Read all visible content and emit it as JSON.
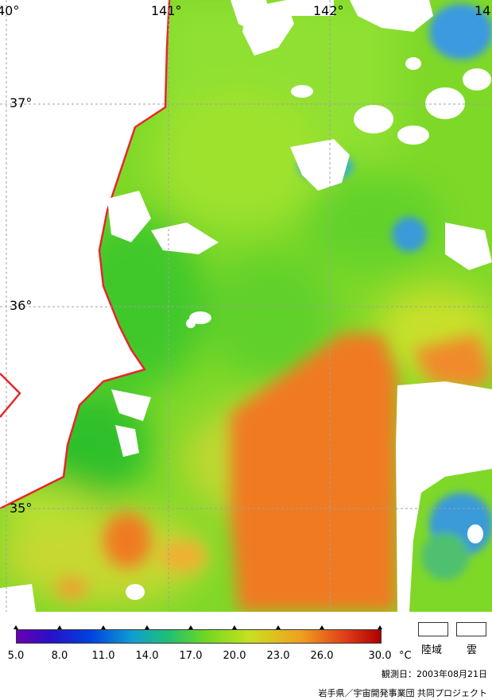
{
  "map": {
    "lon_labels": [
      "40°",
      "141°",
      "142°",
      "14"
    ],
    "lat_labels": [
      "37°",
      "36°",
      "35°"
    ],
    "colors": {
      "land": "#ffffff",
      "cloud": "#ffffff",
      "coastline": "#e8262a",
      "grid": "#a0a0a0",
      "sst_cool": "#4aa8e0",
      "sst_mid": "#6ed61f",
      "sst_warm": "#f07a24"
    }
  },
  "legend": {
    "ticks": [
      "5.0",
      "8.0",
      "11.0",
      "14.0",
      "17.0",
      "20.0",
      "23.0",
      "26.0",
      "30.0"
    ],
    "unit": "°C",
    "land_label": "陸域",
    "cloud_label": "雲"
  },
  "footer": {
    "observation_date": "観測日：2003年08月21日",
    "credit": "岩手県／宇宙開発事業団 共同プロジェクト"
  }
}
